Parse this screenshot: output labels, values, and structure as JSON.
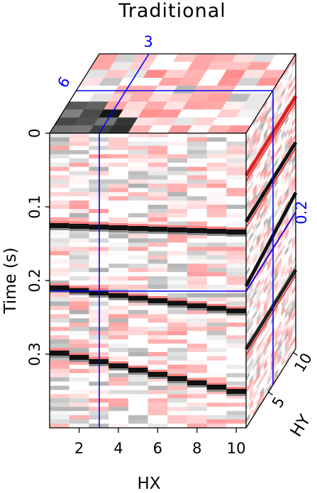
{
  "title": "Traditional",
  "axes": {
    "time": {
      "label": "Time (s)",
      "ticks": [
        "0",
        "0.1",
        "0.2",
        "0.3"
      ],
      "values": [
        0,
        0.1,
        0.2,
        0.3
      ],
      "range": [
        0,
        0.4
      ]
    },
    "hx": {
      "label": "HX",
      "ticks": [
        "2",
        "4",
        "6",
        "8",
        "10"
      ],
      "values": [
        2,
        4,
        6,
        8,
        10
      ],
      "range": [
        0.5,
        10.5
      ]
    },
    "hy": {
      "label": "HY",
      "ticks": [
        "5",
        "10"
      ],
      "values": [
        5,
        10
      ],
      "range": [
        0.5,
        10.5
      ]
    }
  },
  "slices": {
    "hx": "3",
    "hy": "6",
    "time": "0.2"
  },
  "colors": {
    "slice_line": "#0000ff",
    "positive": "#ff2020",
    "negative": "#000000",
    "background": "#ffffff"
  }
}
